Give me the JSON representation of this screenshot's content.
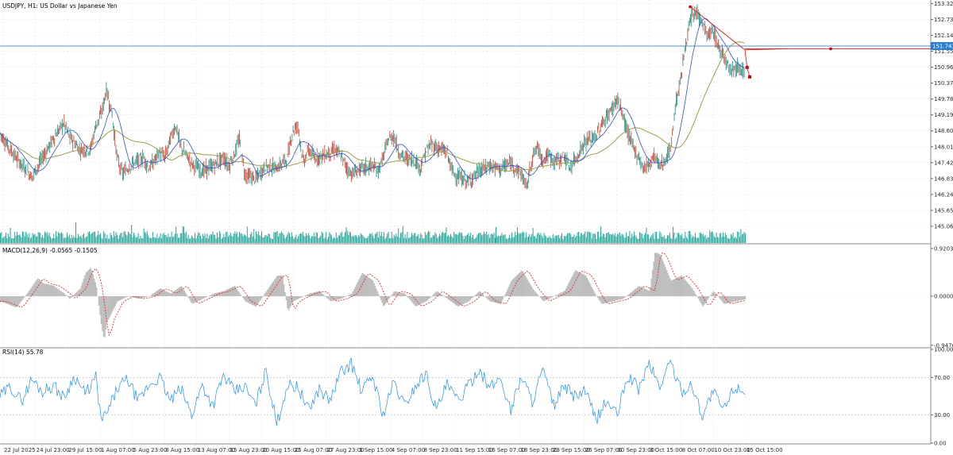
{
  "chart_data": {
    "type": "line",
    "title": "USDJPY, H1:  US Dollar vs Japanese Yen",
    "current_price": "151.743",
    "current_price_value": 151.743,
    "level_price": 151.64,
    "price_axis": {
      "ylim": [
        144.5,
        153.45
      ],
      "ticks": [
        "153.320",
        "152.730",
        "152.140",
        "151.550",
        "150.960",
        "150.370",
        "149.780",
        "149.190",
        "148.600",
        "148.010",
        "147.420",
        "146.830",
        "146.240",
        "145.650",
        "145.060"
      ]
    },
    "x_tick_labels": [
      "22 Jul 2025",
      "24 Jul 23:00",
      "29 Jul 15:00",
      "1 Aug 07:00",
      "5 Aug 23:00",
      "8 Aug 15:00",
      "13 Aug 07:00",
      "15 Aug 23:00",
      "20 Aug 15:00",
      "25 Aug 07:00",
      "27 Aug 23:00",
      "1 Sep 15:00",
      "4 Sep 07:00",
      "8 Sep 23:00",
      "11 Sep 15:00",
      "16 Sep 07:00",
      "18 Sep 23:00",
      "23 Sep 15:00",
      "26 Sep 07:00",
      "30 Sep 23:00",
      "3 Oct 15:00",
      "8 Oct 07:00",
      "10 Oct 23:00",
      "15 Oct 15:00"
    ],
    "price_path": [
      [
        0,
        148.5
      ],
      [
        3,
        147.6
      ],
      [
        6,
        146.9
      ],
      [
        8,
        147.6
      ],
      [
        10,
        148.3
      ],
      [
        12,
        148.9
      ],
      [
        13,
        148.4
      ],
      [
        15,
        147.9
      ],
      [
        17,
        147.9
      ],
      [
        18,
        148.8
      ],
      [
        19,
        149.2
      ],
      [
        20,
        150.1
      ],
      [
        21,
        149.3
      ],
      [
        22,
        147.6
      ],
      [
        23,
        147.0
      ],
      [
        25,
        147.4
      ],
      [
        27,
        147.6
      ],
      [
        28,
        147.2
      ],
      [
        30,
        147.8
      ],
      [
        31,
        147.6
      ],
      [
        32,
        148.3
      ],
      [
        33,
        148.8
      ],
      [
        34,
        148.0
      ],
      [
        36,
        147.4
      ],
      [
        38,
        147.1
      ],
      [
        40,
        147.3
      ],
      [
        42,
        147.6
      ],
      [
        43,
        147.3
      ],
      [
        44,
        147.7
      ],
      [
        45,
        148.3
      ],
      [
        46,
        147.0
      ],
      [
        48,
        146.8
      ],
      [
        50,
        147.3
      ],
      [
        52,
        147.2
      ],
      [
        54,
        147.6
      ],
      [
        55,
        148.6
      ],
      [
        56,
        148.8
      ],
      [
        57,
        147.4
      ],
      [
        58,
        147.9
      ],
      [
        59,
        147.6
      ],
      [
        61,
        147.7
      ],
      [
        63,
        147.9
      ],
      [
        64,
        147.7
      ],
      [
        65,
        147.3
      ],
      [
        66,
        147.0
      ],
      [
        68,
        147.2
      ],
      [
        70,
        147.3
      ],
      [
        71,
        147.1
      ],
      [
        72,
        147.6
      ],
      [
        73,
        148.3
      ],
      [
        74,
        148.4
      ],
      [
        75,
        147.8
      ],
      [
        76,
        147.6
      ],
      [
        78,
        147.5
      ],
      [
        79,
        147.2
      ],
      [
        80,
        147.8
      ],
      [
        81,
        148.1
      ],
      [
        82,
        148.0
      ],
      [
        84,
        147.8
      ],
      [
        85,
        147.1
      ],
      [
        86,
        146.9
      ],
      [
        88,
        146.7
      ],
      [
        90,
        147.1
      ],
      [
        92,
        147.3
      ],
      [
        94,
        147.2
      ],
      [
        96,
        147.4
      ],
      [
        98,
        147.0
      ],
      [
        99,
        146.5
      ],
      [
        100,
        147.6
      ],
      [
        101,
        148.0
      ],
      [
        102,
        147.5
      ],
      [
        103,
        147.7
      ],
      [
        104,
        147.5
      ],
      [
        105,
        147.5
      ],
      [
        106,
        147.7
      ],
      [
        107,
        147.2
      ],
      [
        108,
        147.5
      ],
      [
        110,
        148.2
      ],
      [
        112,
        148.4
      ],
      [
        113,
        148.8
      ],
      [
        115,
        149.4
      ],
      [
        116,
        149.8
      ],
      [
        117,
        149.2
      ],
      [
        118,
        148.5
      ],
      [
        119,
        148.0
      ],
      [
        120,
        147.6
      ],
      [
        121,
        147.2
      ],
      [
        122,
        147.4
      ],
      [
        123,
        147.7
      ],
      [
        124,
        147.3
      ],
      [
        125,
        147.5
      ],
      [
        126,
        147.9
      ],
      [
        127,
        149.6
      ],
      [
        128,
        150.6
      ],
      [
        129,
        152.0
      ],
      [
        130,
        152.8
      ],
      [
        131,
        153.0
      ],
      [
        132,
        152.6
      ],
      [
        133,
        152.1
      ],
      [
        134,
        152.3
      ],
      [
        135,
        151.7
      ],
      [
        136,
        151.4
      ],
      [
        137,
        151.0
      ],
      [
        138,
        150.9
      ],
      [
        139,
        151.0
      ],
      [
        140,
        150.7
      ]
    ],
    "forecast_lines": [
      {
        "from": [
          129.7,
          153.2
        ],
        "to": [
          140.0,
          151.6
        ]
      },
      {
        "from": [
          140.0,
          151.6
        ],
        "to": [
          147.8,
          151.64
        ]
      }
    ],
    "forecast_points": [
      [
        140.4,
        150.95
      ],
      [
        140.9,
        150.6
      ]
    ],
    "volume": {
      "label": ""
    },
    "macd": {
      "label": "MACD(12,26,9) -0.0565 -0.1505",
      "ylim": [
        -0.98,
        0.95
      ],
      "ticks": [
        "0.9203",
        "0.0000",
        "-0.9476"
      ],
      "path": [
        [
          0,
          -0.1
        ],
        [
          3,
          -0.22
        ],
        [
          5,
          0.05
        ],
        [
          7,
          0.35
        ],
        [
          8,
          0.25
        ],
        [
          10,
          0.2
        ],
        [
          12,
          0.05
        ],
        [
          13,
          -0.05
        ],
        [
          15,
          0.15
        ],
        [
          16,
          0.45
        ],
        [
          17,
          0.55
        ],
        [
          18,
          0.2
        ],
        [
          19,
          -0.6
        ],
        [
          19.5,
          -0.85
        ],
        [
          20,
          -0.5
        ],
        [
          22,
          -0.1
        ],
        [
          24,
          0.0
        ],
        [
          26,
          -0.05
        ],
        [
          28,
          0.0
        ],
        [
          30,
          0.15
        ],
        [
          32,
          0.05
        ],
        [
          34,
          0.2
        ],
        [
          36,
          -0.15
        ],
        [
          38,
          -0.05
        ],
        [
          40,
          0.05
        ],
        [
          42,
          0.1
        ],
        [
          44,
          0.2
        ],
        [
          46,
          -0.1
        ],
        [
          48,
          -0.2
        ],
        [
          50,
          0.1
        ],
        [
          52,
          0.4
        ],
        [
          53,
          0.4
        ],
        [
          54,
          -0.3
        ],
        [
          55,
          -0.1
        ],
        [
          58,
          0.05
        ],
        [
          60,
          0.1
        ],
        [
          62,
          -0.1
        ],
        [
          64,
          -0.05
        ],
        [
          66,
          0.05
        ],
        [
          68,
          0.45
        ],
        [
          70,
          0.3
        ],
        [
          72,
          -0.2
        ],
        [
          74,
          0.1
        ],
        [
          76,
          0.05
        ],
        [
          78,
          -0.2
        ],
        [
          80,
          -0.1
        ],
        [
          82,
          0.1
        ],
        [
          84,
          -0.05
        ],
        [
          86,
          -0.2
        ],
        [
          88,
          -0.1
        ],
        [
          90,
          0.1
        ],
        [
          92,
          -0.1
        ],
        [
          94,
          -0.15
        ],
        [
          96,
          0.3
        ],
        [
          98,
          0.5
        ],
        [
          100,
          0.15
        ],
        [
          102,
          -0.1
        ],
        [
          104,
          0.0
        ],
        [
          106,
          0.1
        ],
        [
          108,
          0.5
        ],
        [
          110,
          0.4
        ],
        [
          112,
          0.0
        ],
        [
          113,
          -0.15
        ],
        [
          115,
          -0.1
        ],
        [
          117,
          -0.05
        ],
        [
          120,
          0.2
        ],
        [
          122,
          0.1
        ],
        [
          123,
          0.85
        ],
        [
          124,
          0.8
        ],
        [
          126,
          0.3
        ],
        [
          128,
          0.4
        ],
        [
          130,
          0.15
        ],
        [
          132,
          -0.2
        ],
        [
          134,
          0.1
        ],
        [
          136,
          -0.15
        ],
        [
          138,
          -0.1
        ],
        [
          140,
          -0.06
        ]
      ]
    },
    "rsi": {
      "label": "RSI(14) 55.78",
      "ylim": [
        0,
        100
      ],
      "ticks": [
        "100.00",
        "70.00",
        "30.00",
        "0.00"
      ],
      "path": [
        [
          0,
          50
        ],
        [
          2,
          60
        ],
        [
          4,
          45
        ],
        [
          6,
          68
        ],
        [
          8,
          55
        ],
        [
          10,
          62
        ],
        [
          12,
          48
        ],
        [
          14,
          72
        ],
        [
          16,
          52
        ],
        [
          18,
          70
        ],
        [
          19,
          25
        ],
        [
          20,
          30
        ],
        [
          22,
          58
        ],
        [
          24,
          68
        ],
        [
          26,
          44
        ],
        [
          28,
          62
        ],
        [
          30,
          70
        ],
        [
          32,
          45
        ],
        [
          34,
          58
        ],
        [
          36,
          30
        ],
        [
          38,
          62
        ],
        [
          40,
          40
        ],
        [
          42,
          72
        ],
        [
          44,
          55
        ],
        [
          46,
          60
        ],
        [
          48,
          40
        ],
        [
          50,
          78
        ],
        [
          52,
          20
        ],
        [
          54,
          62
        ],
        [
          56,
          60
        ],
        [
          58,
          35
        ],
        [
          60,
          58
        ],
        [
          62,
          45
        ],
        [
          64,
          75
        ],
        [
          66,
          85
        ],
        [
          68,
          55
        ],
        [
          70,
          72
        ],
        [
          72,
          30
        ],
        [
          74,
          65
        ],
        [
          76,
          40
        ],
        [
          78,
          60
        ],
        [
          80,
          75
        ],
        [
          82,
          35
        ],
        [
          84,
          62
        ],
        [
          86,
          45
        ],
        [
          88,
          60
        ],
        [
          90,
          80
        ],
        [
          92,
          58
        ],
        [
          94,
          70
        ],
        [
          96,
          35
        ],
        [
          98,
          72
        ],
        [
          100,
          45
        ],
        [
          102,
          78
        ],
        [
          104,
          40
        ],
        [
          106,
          60
        ],
        [
          108,
          50
        ],
        [
          110,
          55
        ],
        [
          112,
          25
        ],
        [
          114,
          45
        ],
        [
          116,
          30
        ],
        [
          118,
          72
        ],
        [
          120,
          58
        ],
        [
          122,
          85
        ],
        [
          124,
          60
        ],
        [
          126,
          88
        ],
        [
          128,
          55
        ],
        [
          130,
          62
        ],
        [
          132,
          30
        ],
        [
          134,
          55
        ],
        [
          136,
          35
        ],
        [
          138,
          60
        ],
        [
          140,
          56
        ]
      ]
    }
  }
}
